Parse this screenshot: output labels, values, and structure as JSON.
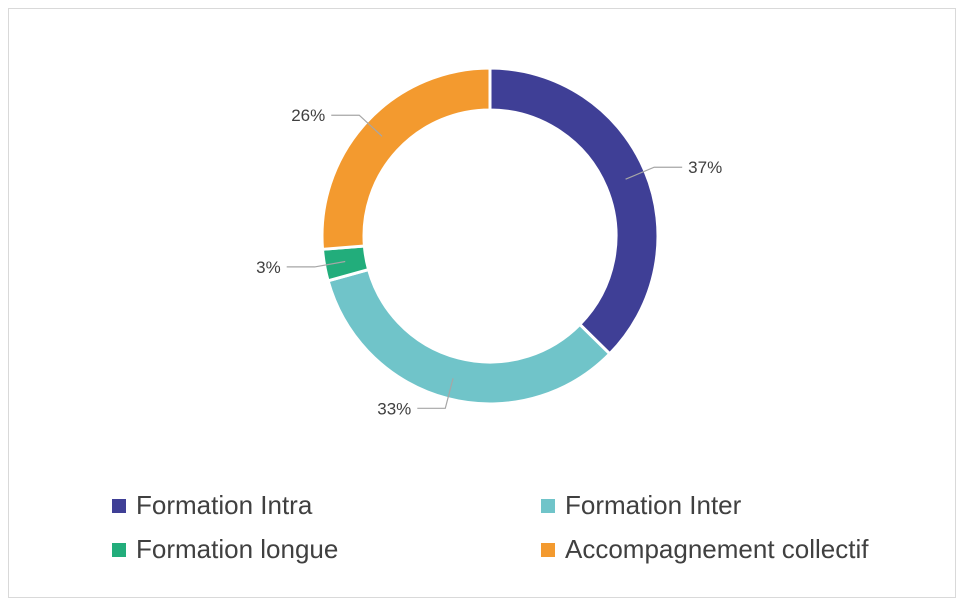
{
  "chart_data": {
    "type": "pie",
    "donut": true,
    "title": "",
    "categories": [
      "Formation Intra",
      "Formation Inter",
      "Formation longue",
      "Accompagnement collectif"
    ],
    "values": [
      37,
      33,
      3,
      26
    ],
    "data_labels": [
      "37%",
      "33%",
      "3%",
      "26%"
    ],
    "colors": [
      "#3f3f96",
      "#70c4c9",
      "#22ad7b",
      "#f39a2f"
    ],
    "legend": {
      "position": "bottom",
      "items": [
        "Formation Intra",
        "Formation Inter",
        "Formation longue",
        "Accompagnement collectif"
      ]
    }
  }
}
